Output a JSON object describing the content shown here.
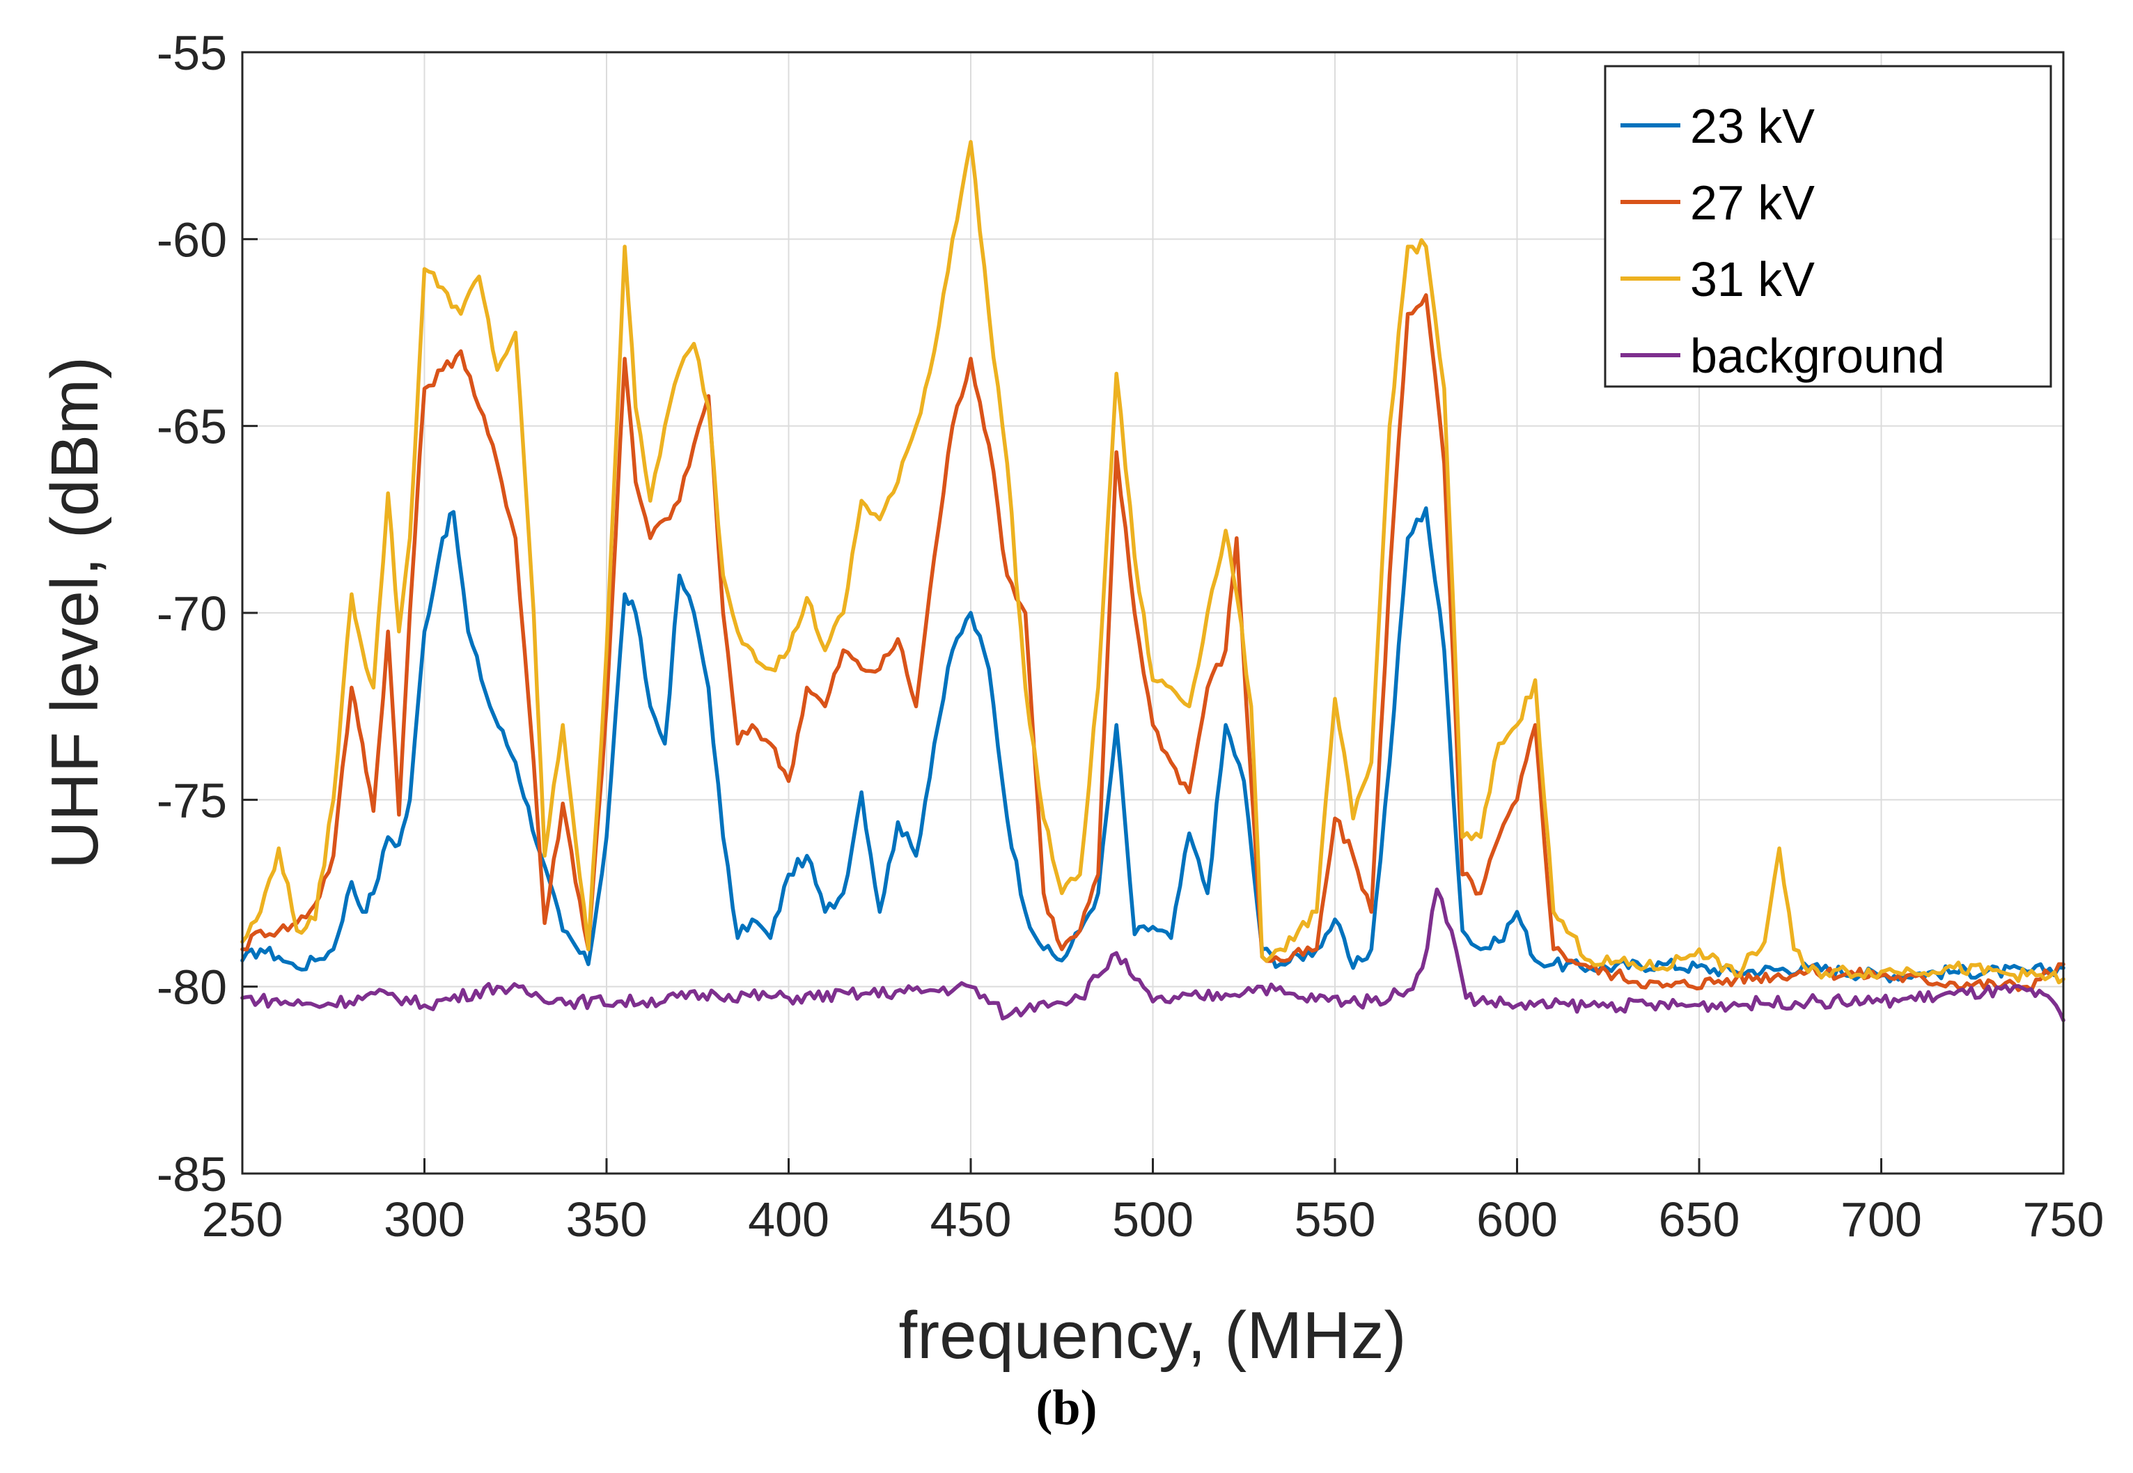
{
  "chart_data": {
    "type": "line",
    "title": "",
    "xlabel": "frequency, (MHz)",
    "ylabel": "UHF level, (dBm)",
    "xlim": [
      250,
      750
    ],
    "ylim": [
      -85,
      -55
    ],
    "xticks": [
      250,
      300,
      350,
      400,
      450,
      500,
      550,
      600,
      650,
      700,
      750
    ],
    "yticks": [
      -55,
      -60,
      -65,
      -70,
      -75,
      -80,
      -85
    ],
    "grid": true,
    "legend_position": "top-right",
    "series": [
      {
        "name": "23 kV",
        "color": "#0072BD",
        "x": [
          250,
          255,
          260,
          265,
          270,
          275,
          280,
          283,
          286,
          290,
          293,
          296,
          300,
          305,
          308,
          312,
          318,
          325,
          332,
          338,
          345,
          350,
          355,
          358,
          362,
          366,
          370,
          374,
          378,
          382,
          386,
          390,
          395,
          400,
          405,
          410,
          415,
          420,
          425,
          430,
          435,
          440,
          445,
          450,
          455,
          460,
          465,
          470,
          475,
          480,
          485,
          490,
          495,
          500,
          505,
          510,
          515,
          520,
          525,
          530,
          535,
          545,
          550,
          555,
          560,
          565,
          570,
          575,
          580,
          585,
          590,
          595,
          600,
          605,
          610,
          620,
          640,
          660,
          680,
          700,
          720,
          740,
          750
        ],
        "y": [
          -79.3,
          -79.0,
          -79.2,
          -79.5,
          -79.3,
          -79.0,
          -77.2,
          -78.0,
          -77.5,
          -76.0,
          -76.2,
          -75.0,
          -70.5,
          -68.0,
          -67.3,
          -70.5,
          -72.5,
          -74.0,
          -76.5,
          -78.5,
          -79.4,
          -76.0,
          -69.5,
          -70.0,
          -72.5,
          -73.5,
          -69.0,
          -70.0,
          -72.0,
          -76.0,
          -78.7,
          -78.2,
          -78.7,
          -77.0,
          -76.5,
          -78.0,
          -77.5,
          -74.8,
          -78.0,
          -75.6,
          -76.5,
          -73.5,
          -71.0,
          -70.0,
          -71.5,
          -75.5,
          -78.0,
          -79.0,
          -79.3,
          -78.5,
          -77.5,
          -73.0,
          -78.6,
          -78.4,
          -78.7,
          -75.9,
          -77.5,
          -73.0,
          -74.5,
          -79.0,
          -79.4,
          -79.0,
          -78.2,
          -79.5,
          -79.0,
          -74.0,
          -68.0,
          -67.2,
          -71.0,
          -78.5,
          -79.0,
          -78.8,
          -78.0,
          -79.3,
          -79.4,
          -79.5,
          -79.4,
          -79.6,
          -79.5,
          -79.7,
          -79.6,
          -79.6,
          -79.5
        ]
      },
      {
        "name": "27 kV",
        "color": "#D95319",
        "x": [
          250,
          255,
          260,
          265,
          270,
          275,
          280,
          283,
          286,
          290,
          293,
          296,
          300,
          305,
          310,
          315,
          320,
          325,
          330,
          333,
          338,
          345,
          350,
          355,
          358,
          362,
          366,
          370,
          374,
          378,
          382,
          386,
          390,
          395,
          400,
          405,
          410,
          415,
          420,
          425,
          430,
          435,
          440,
          445,
          450,
          455,
          460,
          465,
          470,
          475,
          480,
          485,
          490,
          495,
          500,
          505,
          510,
          515,
          520,
          523,
          527,
          530,
          535,
          545,
          550,
          555,
          560,
          565,
          570,
          575,
          580,
          585,
          590,
          595,
          600,
          605,
          610,
          620,
          640,
          660,
          680,
          700,
          720,
          740,
          750
        ],
        "y": [
          -79.0,
          -78.5,
          -78.5,
          -78.3,
          -77.8,
          -76.5,
          -72.0,
          -73.5,
          -75.3,
          -70.5,
          -75.4,
          -70.0,
          -64.0,
          -63.5,
          -63.0,
          -64.5,
          -66.0,
          -68.0,
          -74.0,
          -78.3,
          -75.1,
          -79.0,
          -72.5,
          -63.2,
          -66.5,
          -68.0,
          -67.5,
          -67.0,
          -65.5,
          -64.2,
          -70.0,
          -73.5,
          -73.0,
          -73.5,
          -74.5,
          -72.0,
          -72.5,
          -71.0,
          -71.5,
          -71.5,
          -70.7,
          -72.5,
          -68.5,
          -65.0,
          -63.2,
          -65.5,
          -69.0,
          -70.0,
          -77.5,
          -79.0,
          -78.5,
          -77.0,
          -65.7,
          -70.0,
          -73.0,
          -74.0,
          -74.8,
          -72.0,
          -71.0,
          -68.0,
          -74.5,
          -79.2,
          -79.3,
          -79.0,
          -75.5,
          -76.5,
          -78.0,
          -69.0,
          -62.0,
          -61.5,
          -66.0,
          -77.0,
          -77.5,
          -76.0,
          -75.0,
          -73.0,
          -79.0,
          -79.5,
          -80.0,
          -79.8,
          -79.6,
          -79.7,
          -79.9,
          -80.0,
          -79.4
        ]
      },
      {
        "name": "31 kV",
        "color": "#EDB120",
        "x": [
          250,
          255,
          260,
          265,
          270,
          275,
          280,
          283,
          286,
          290,
          293,
          296,
          300,
          305,
          310,
          315,
          320,
          325,
          330,
          333,
          338,
          345,
          350,
          355,
          358,
          362,
          366,
          370,
          374,
          378,
          382,
          386,
          390,
          395,
          400,
          405,
          410,
          415,
          420,
          425,
          430,
          435,
          440,
          445,
          450,
          455,
          460,
          465,
          470,
          475,
          480,
          485,
          490,
          495,
          500,
          505,
          510,
          515,
          520,
          523,
          527,
          530,
          535,
          545,
          550,
          555,
          560,
          565,
          570,
          575,
          580,
          585,
          590,
          595,
          600,
          605,
          610,
          620,
          640,
          650,
          660,
          668,
          672,
          676,
          680,
          700,
          720,
          740,
          750
        ],
        "y": [
          -78.8,
          -78.0,
          -76.3,
          -78.5,
          -78.2,
          -75.0,
          -69.5,
          -71.0,
          -72.0,
          -66.8,
          -70.5,
          -68.0,
          -60.8,
          -61.3,
          -62.0,
          -61.0,
          -63.5,
          -62.5,
          -70.0,
          -76.5,
          -73.0,
          -79.0,
          -71.0,
          -60.2,
          -64.5,
          -67.0,
          -65.0,
          -63.5,
          -62.8,
          -64.5,
          -69.0,
          -70.5,
          -71.0,
          -71.5,
          -71.0,
          -69.6,
          -71.0,
          -70.0,
          -67.0,
          -67.5,
          -66.5,
          -65.0,
          -63.0,
          -60.0,
          -57.4,
          -62.0,
          -66.0,
          -72.0,
          -75.5,
          -77.5,
          -77.0,
          -72.0,
          -63.6,
          -68.5,
          -71.8,
          -72.0,
          -72.5,
          -70.0,
          -67.8,
          -69.5,
          -72.5,
          -79.2,
          -79.0,
          -78.0,
          -72.3,
          -75.5,
          -74.0,
          -65.0,
          -60.2,
          -60.2,
          -64.0,
          -76.0,
          -76.0,
          -73.5,
          -73.0,
          -71.8,
          -78.0,
          -79.3,
          -79.5,
          -79.0,
          -79.7,
          -78.8,
          -76.3,
          -79.0,
          -79.6,
          -79.6,
          -79.5,
          -79.7,
          -79.8
        ]
      },
      {
        "name": "background",
        "color": "#7E2F8E",
        "x": [
          250,
          270,
          290,
          300,
          320,
          340,
          360,
          380,
          400,
          420,
          440,
          450,
          460,
          470,
          480,
          490,
          495,
          500,
          520,
          530,
          540,
          560,
          570,
          574,
          578,
          582,
          586,
          600,
          620,
          650,
          680,
          700,
          720,
          740,
          748,
          750
        ],
        "y": [
          -80.3,
          -80.5,
          -80.2,
          -80.5,
          -80.0,
          -80.4,
          -80.4,
          -80.2,
          -80.3,
          -80.2,
          -80.1,
          -80.0,
          -80.8,
          -80.4,
          -80.3,
          -79.1,
          -79.8,
          -80.4,
          -80.2,
          -80.0,
          -80.3,
          -80.4,
          -80.1,
          -79.5,
          -77.4,
          -78.5,
          -80.3,
          -80.5,
          -80.5,
          -80.5,
          -80.4,
          -80.4,
          -80.2,
          -80.1,
          -80.5,
          -80.9
        ]
      }
    ]
  },
  "caption": {
    "label": "(b)"
  }
}
